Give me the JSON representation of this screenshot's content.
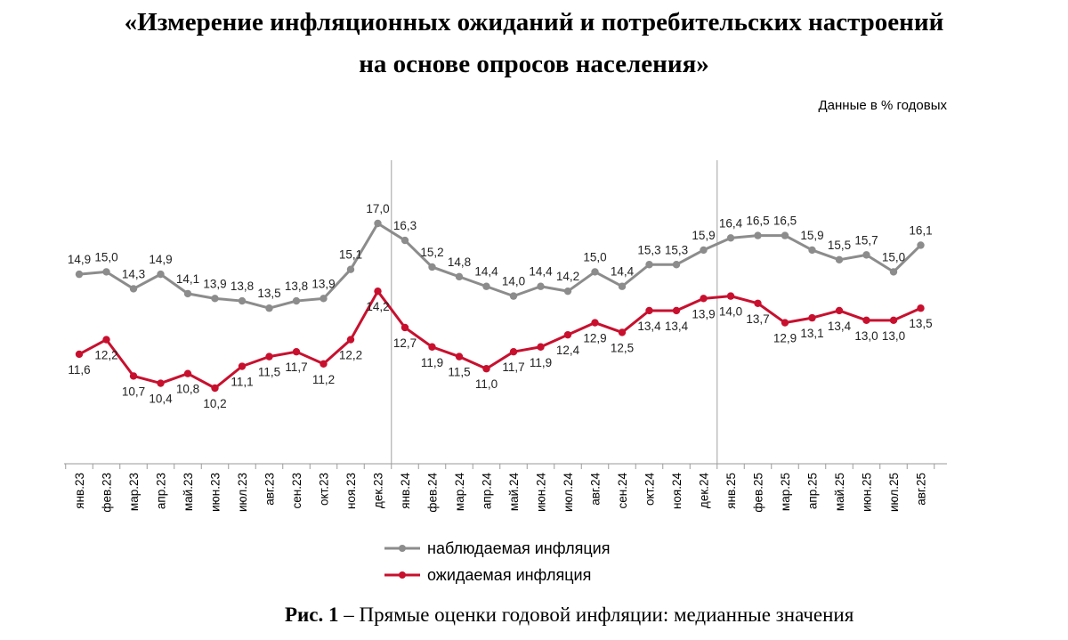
{
  "header": {
    "title_line1": "«Измерение инфляционных ожиданий и потребительских настроений",
    "title_line2": "на основе опросов населения»",
    "units_note": "Данные в % годовых"
  },
  "caption": {
    "bold": "Рис. 1",
    "text": " – Прямые оценки годовой инфляции: медианные значения"
  },
  "colors": {
    "observed": "#8c8c8c",
    "expected": "#c8102e",
    "axis": "#9a9a9a",
    "divider": "#b0b0b0"
  },
  "chart_data": {
    "type": "line",
    "title": "Прямые оценки годовой инфляции: медианные значения",
    "ylabel": "Данные в % годовых",
    "ylim": [
      6,
      19
    ],
    "grid": false,
    "legend_position": "bottom-center",
    "year_dividers_after": [
      "дек.23",
      "дек.24"
    ],
    "categories": [
      "янв.23",
      "фев.23",
      "мар.23",
      "апр.23",
      "май.23",
      "июн.23",
      "июл.23",
      "авг.23",
      "сен.23",
      "окт.23",
      "ноя.23",
      "дек.23",
      "янв.24",
      "фев.24",
      "мар.24",
      "апр.24",
      "май.24",
      "июн.24",
      "июл.24",
      "авг.24",
      "сен.24",
      "окт.24",
      "ноя.24",
      "дек.24",
      "янв.25",
      "фев.25",
      "мар.25",
      "апр.25",
      "май.25",
      "июн.25",
      "июл.25",
      "авг.25"
    ],
    "series": [
      {
        "name": "наблюдаемая инфляция",
        "values": [
          14.9,
          15.0,
          14.3,
          14.9,
          14.1,
          13.9,
          13.8,
          13.5,
          13.8,
          13.9,
          15.1,
          17.0,
          16.3,
          15.2,
          14.8,
          14.4,
          14.0,
          14.4,
          14.2,
          15.0,
          14.4,
          15.3,
          15.3,
          15.9,
          16.4,
          16.5,
          16.5,
          15.9,
          15.5,
          15.7,
          15.0,
          16.1
        ],
        "labels": [
          "14,9",
          "15,0",
          "14,3",
          "14,9",
          "14,1",
          "13,9",
          "13,8",
          "13,5",
          "13,8",
          "13,9",
          "15,1",
          "17,0",
          "16,3",
          "15,2",
          "14,8",
          "14,4",
          "14,0",
          "14,4",
          "14,2",
          "15,0",
          "14,4",
          "15,3",
          "15,3",
          "15,9",
          "16,4",
          "16,5",
          "16,5",
          "15,9",
          "15,5",
          "15,7",
          "15,0",
          "16,1"
        ]
      },
      {
        "name": "ожидаемая инфляция",
        "values": [
          11.6,
          12.2,
          10.7,
          10.4,
          10.8,
          10.2,
          11.1,
          11.5,
          11.7,
          11.2,
          12.2,
          14.2,
          12.7,
          11.9,
          11.5,
          11.0,
          11.7,
          11.9,
          12.4,
          12.9,
          12.5,
          13.4,
          13.4,
          13.9,
          14.0,
          13.7,
          12.9,
          13.1,
          13.4,
          13.0,
          13.0,
          13.5
        ],
        "labels": [
          "11,6",
          "12,2",
          "10,7",
          "10,4",
          "10,8",
          "10,2",
          "11,1",
          "11,5",
          "11,7",
          "11,2",
          "12,2",
          "14,2",
          "12,7",
          "11,9",
          "11,5",
          "11,0",
          "11,7",
          "11,9",
          "12,4",
          "12,9",
          "12,5",
          "13,4",
          "13,4",
          "13,9",
          "14,0",
          "13,7",
          "12,9",
          "13,1",
          "13,4",
          "13,0",
          "13,0",
          "13,5"
        ]
      }
    ]
  }
}
